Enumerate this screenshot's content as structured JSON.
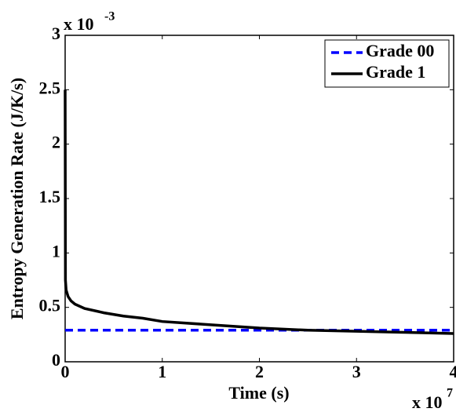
{
  "chart_data": {
    "type": "line",
    "xlabel": "Time (s)",
    "ylabel": "Entropy Generation Rate (J/K/s)",
    "x_multiplier": {
      "base": "x 10",
      "exponent": "7"
    },
    "y_multiplier": {
      "base": "x 10",
      "exponent": "-3"
    },
    "x": [
      0,
      0.003,
      0.01,
      0.03,
      0.06,
      0.1,
      0.2,
      0.4,
      0.6,
      0.8,
      1,
      1.5,
      2,
      2.5,
      3,
      3.5,
      4
    ],
    "series": [
      {
        "name": "Grade 00",
        "color": "#0000ff",
        "dash": true,
        "values": [
          0.29,
          0.29,
          0.29,
          0.29,
          0.29,
          0.29,
          0.29,
          0.29,
          0.29,
          0.29,
          0.29,
          0.29,
          0.29,
          0.29,
          0.29,
          0.29,
          0.29
        ]
      },
      {
        "name": "Grade 1",
        "color": "#000000",
        "dash": false,
        "values": [
          2.5,
          0.75,
          0.66,
          0.6,
          0.56,
          0.53,
          0.49,
          0.45,
          0.42,
          0.4,
          0.37,
          0.34,
          0.31,
          0.29,
          0.28,
          0.27,
          0.26
        ]
      }
    ],
    "xlim": [
      0,
      4
    ],
    "xticks": [
      0,
      1,
      2,
      3,
      4
    ],
    "ylim": [
      0,
      3
    ],
    "yticks": [
      0,
      0.5,
      1,
      1.5,
      2,
      2.5,
      3
    ],
    "legend": "upper right"
  }
}
